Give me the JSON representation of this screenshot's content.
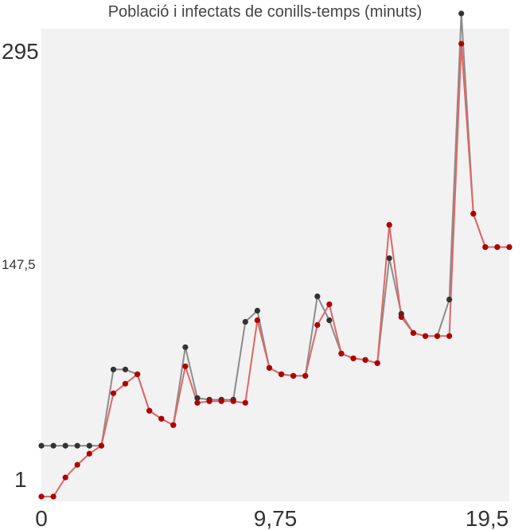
{
  "chart_data": {
    "type": "line",
    "title": "Població i infectats de conills-temps (minuts)",
    "xlabel": "",
    "ylabel": "",
    "xlim": [
      0,
      19.5
    ],
    "ylim": [
      0,
      295
    ],
    "x_ticks": [
      "0",
      "9,75",
      "19,5"
    ],
    "y_ticks": [
      "1",
      "147,5",
      "295"
    ],
    "grid": false,
    "colors": {
      "background": "#f2f2f2",
      "population": "#8c8c8c",
      "population_marker": "#333333",
      "infected": "#e06666",
      "infected_marker": "#b00000"
    },
    "x": [
      0,
      0.5,
      1,
      1.5,
      2,
      2.5,
      3,
      3.5,
      4,
      4.5,
      5,
      5.5,
      6,
      6.5,
      7,
      7.5,
      8,
      8.5,
      9,
      9.5,
      10,
      10.5,
      11,
      11.5,
      12,
      12.5,
      13,
      13.5,
      14,
      14.5,
      15,
      15.5,
      16,
      16.5,
      17,
      17.5,
      18,
      18.5,
      19,
      19.5
    ],
    "series": [
      {
        "values": [
          33,
          33,
          33,
          33,
          33,
          33,
          81,
          81,
          78,
          55,
          50,
          46,
          95,
          63,
          62,
          62,
          62,
          111,
          118,
          82,
          78,
          77,
          77,
          127,
          112,
          91,
          88,
          87,
          85,
          151,
          116,
          104,
          102,
          102,
          125,
          305,
          179,
          158,
          158,
          158
        ]
      },
      {
        "values": [
          1,
          1,
          13,
          21,
          28,
          33,
          66,
          72,
          78,
          55,
          50,
          46,
          83,
          60,
          61,
          61,
          61,
          60,
          112,
          82,
          78,
          77,
          77,
          109,
          122,
          91,
          88,
          87,
          85,
          172,
          114,
          104,
          102,
          102,
          102,
          286,
          179,
          158,
          158,
          158
        ]
      }
    ]
  }
}
